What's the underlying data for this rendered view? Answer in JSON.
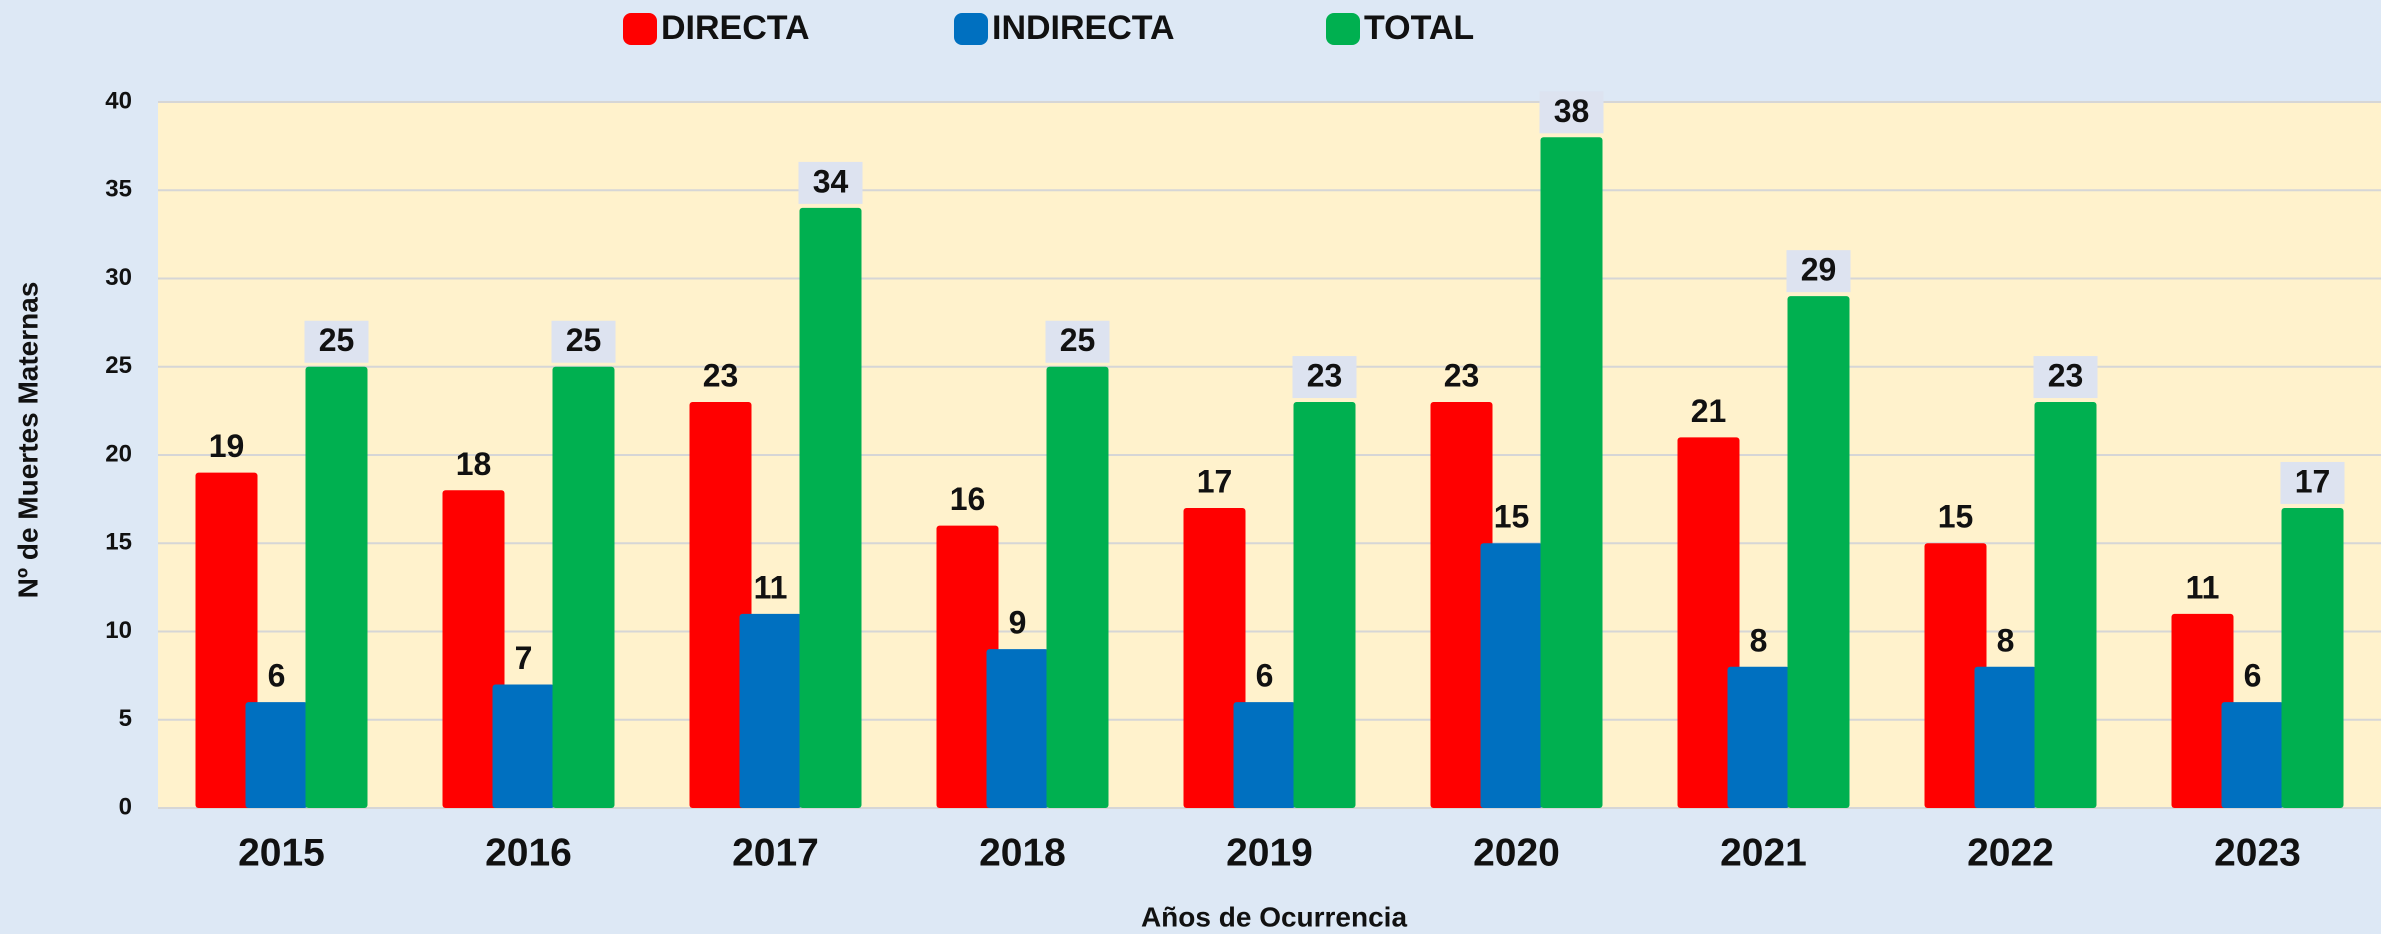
{
  "chart_data": {
    "type": "bar",
    "x_label": "Años de Ocurrencia",
    "y_label": "Nº de Muertes Maternas",
    "categories": [
      "2015",
      "2016",
      "2017",
      "2018",
      "2019",
      "2020",
      "2021",
      "2022",
      "2023"
    ],
    "series": [
      {
        "name": "DIRECTA",
        "color": "#ff0000",
        "values": [
          19,
          18,
          23,
          16,
          17,
          23,
          21,
          15,
          11
        ]
      },
      {
        "name": "INDIRECTA",
        "color": "#0070c0",
        "values": [
          6,
          7,
          11,
          9,
          6,
          15,
          8,
          8,
          6
        ]
      },
      {
        "name": "TOTAL",
        "color": "#00b050",
        "values": [
          25,
          25,
          34,
          25,
          23,
          38,
          29,
          23,
          17
        ]
      }
    ],
    "ylim": [
      0,
      40
    ],
    "yticks": [
      0,
      5,
      10,
      15,
      20,
      25,
      30,
      35,
      40
    ],
    "grid": true,
    "legend": "top"
  }
}
